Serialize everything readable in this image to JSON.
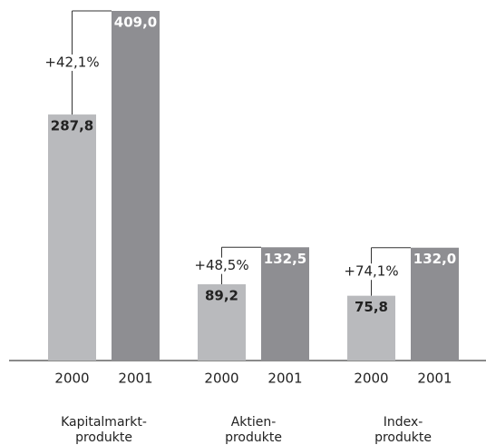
{
  "chart_data": {
    "type": "bar",
    "categories": [
      [
        "Kapitalmarkt-",
        "produkte"
      ],
      [
        "Aktien-",
        "produkte"
      ],
      [
        "Index-",
        "produkte"
      ]
    ],
    "series": [
      {
        "name": "2000",
        "color": "#b9babd",
        "values": [
          287.8,
          89.2,
          75.8
        ],
        "value_labels": [
          "287,8",
          "89,2",
          "75,8"
        ]
      },
      {
        "name": "2001",
        "color": "#8e8e92",
        "values": [
          409.0,
          132.5,
          132.0
        ],
        "value_labels": [
          "409,0",
          "132,5",
          "132,0"
        ]
      }
    ],
    "annotations": [
      "+42,1%",
      "+48,5%",
      "+74,1%"
    ]
  }
}
